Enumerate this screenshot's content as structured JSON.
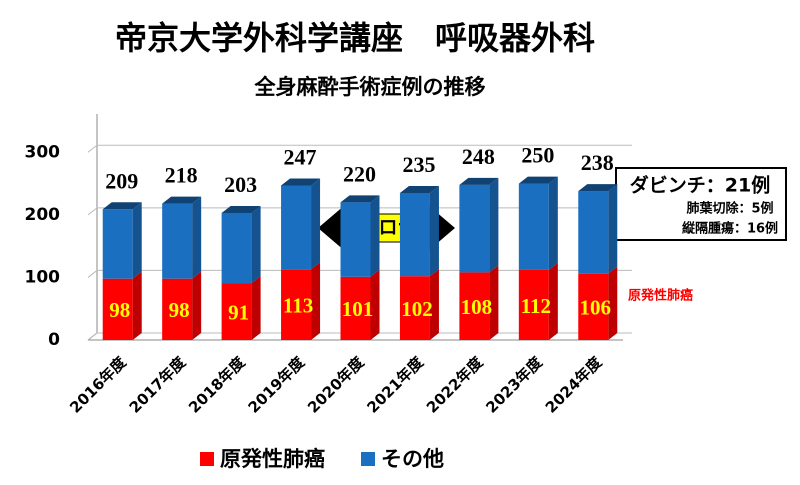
{
  "chart_data": {
    "type": "stacked_bar",
    "title": "帝京大学外科学講座　呼吸器外科",
    "subtitle": "全身麻酔手術症例の推移",
    "categories": [
      "2016年度",
      "2017年度",
      "2018年度",
      "2019年度",
      "2020年度",
      "2021年度",
      "2022年度",
      "2023年度",
      "2024年度"
    ],
    "series": [
      {
        "name": "原発性肺癌",
        "color": "#ff0000",
        "values": [
          98,
          98,
          91,
          113,
          101,
          102,
          108,
          112,
          106
        ]
      },
      {
        "name": "その他",
        "color": "#1a6fc0",
        "values": [
          111,
          120,
          112,
          134,
          119,
          133,
          140,
          138,
          132
        ]
      }
    ],
    "totals": [
      209,
      218,
      203,
      247,
      220,
      235,
      248,
      250,
      238
    ],
    "ylim": [
      0,
      350
    ],
    "yticks": [
      0,
      100,
      200,
      300
    ],
    "grid": true,
    "annotation": "コロナ",
    "davinci": {
      "title": "ダビンチ：21例",
      "lines": [
        "肺葉切除：5例",
        "縦隔腫瘍：16例"
      ]
    }
  }
}
